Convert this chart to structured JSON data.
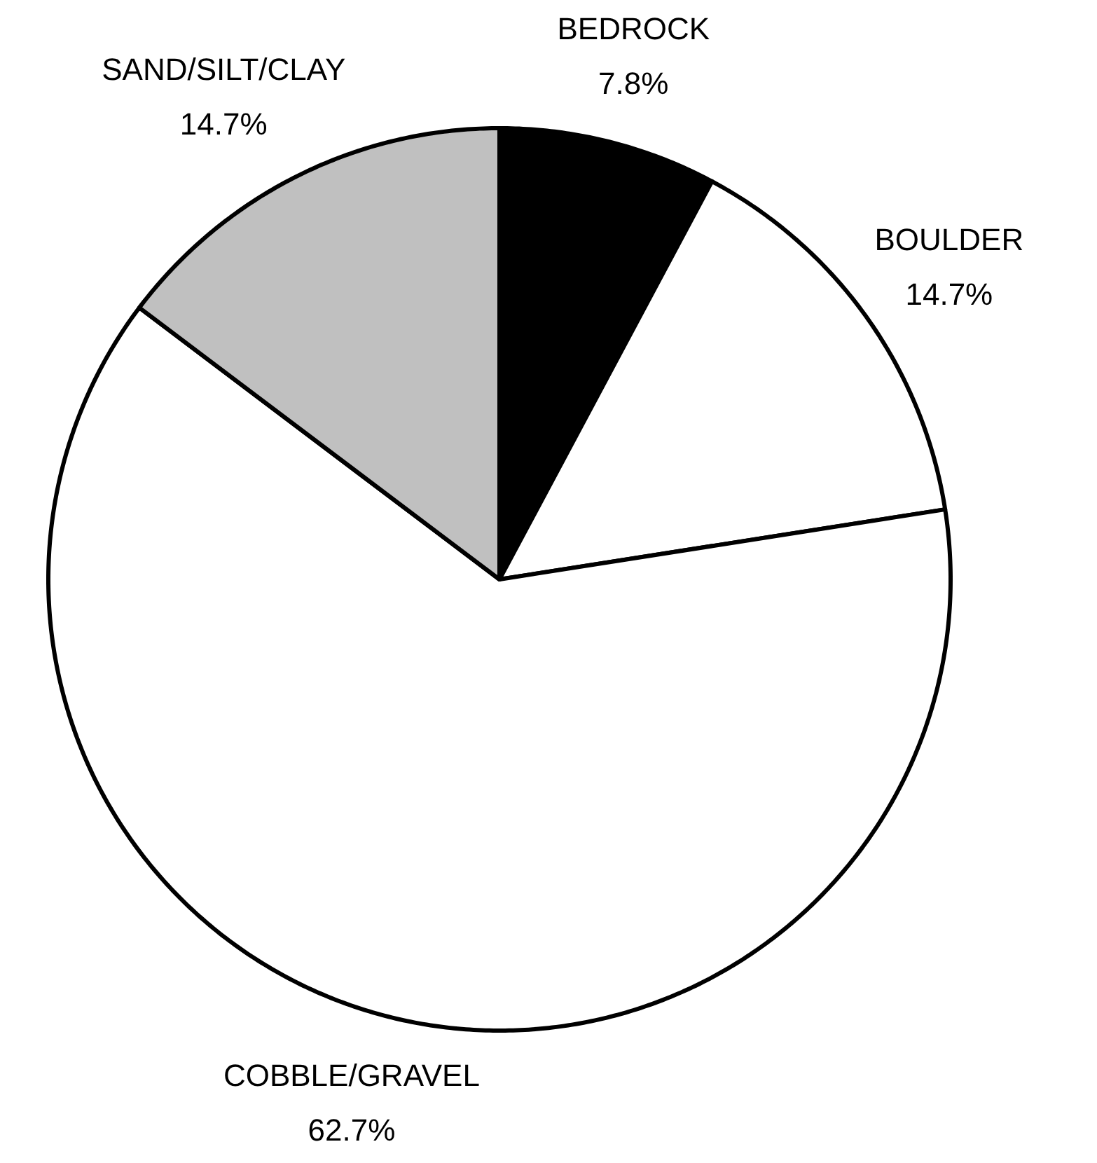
{
  "chart_data": {
    "type": "pie",
    "categories": [
      "BEDROCK",
      "BOULDER",
      "COBBLE/GRAVEL",
      "SAND/SILT/CLAY"
    ],
    "values": [
      7.8,
      14.7,
      62.7,
      14.7
    ],
    "value_labels": [
      "7.8%",
      "14.7%",
      "62.7%",
      "14.7%"
    ],
    "colors": [
      "#000000",
      "#ffffff",
      "#ffffff",
      "#c0c0c0"
    ]
  }
}
